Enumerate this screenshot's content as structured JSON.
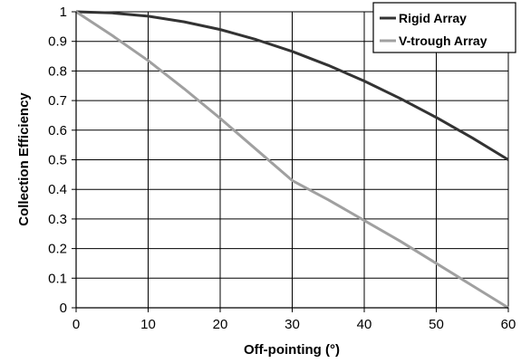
{
  "chart_data": {
    "type": "line",
    "title": "",
    "xlabel": "Off-pointing (°)",
    "ylabel": "Collection Efficiency",
    "xlim": [
      0,
      60
    ],
    "ylim": [
      0,
      1
    ],
    "x_ticks": [
      0,
      10,
      20,
      30,
      40,
      50,
      60
    ],
    "y_ticks": [
      0,
      0.1,
      0.2,
      0.3,
      0.4,
      0.5,
      0.6,
      0.7,
      0.8,
      0.9,
      1
    ],
    "x_tick_labels": [
      "0",
      "10",
      "20",
      "30",
      "40",
      "50",
      "60"
    ],
    "y_tick_labels": [
      "0",
      "0.1",
      "0.2",
      "0.3",
      "0.4",
      "0.5",
      "0.6",
      "0.7",
      "0.8",
      "0.9",
      "1"
    ],
    "grid": true,
    "legend_position": "top-right",
    "series": [
      {
        "name": "Rigid Array",
        "color": "#333333",
        "x": [
          0,
          5,
          10,
          15,
          20,
          25,
          30,
          35,
          40,
          45,
          50,
          55,
          60
        ],
        "y": [
          1.0,
          0.996,
          0.985,
          0.966,
          0.94,
          0.906,
          0.866,
          0.819,
          0.766,
          0.707,
          0.643,
          0.574,
          0.5
        ]
      },
      {
        "name": "V-trough Array",
        "color": "#a0a0a0",
        "x": [
          0,
          5,
          10,
          15,
          20,
          25,
          30,
          35,
          40,
          45,
          50,
          55,
          60
        ],
        "y": [
          1.0,
          0.92,
          0.835,
          0.74,
          0.64,
          0.535,
          0.43,
          0.365,
          0.295,
          0.225,
          0.15,
          0.075,
          0.0
        ]
      }
    ]
  }
}
